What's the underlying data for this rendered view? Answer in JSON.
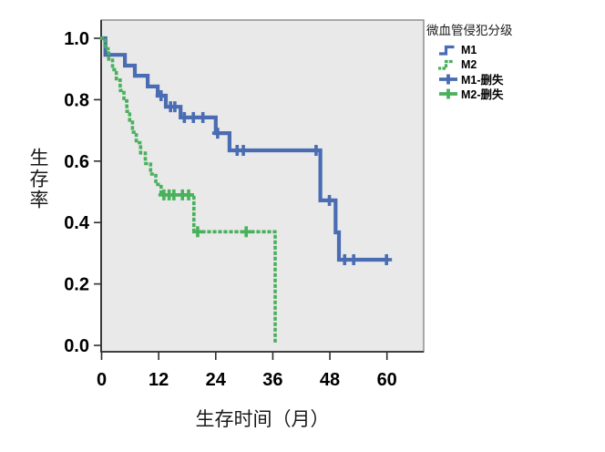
{
  "chart_data": {
    "type": "line",
    "subtype": "kaplan_meier_step",
    "title": "",
    "xlabel": "生存时间（月）",
    "ylabel": "生存率",
    "legend_title": "微血管侵犯分级",
    "legend_position": "right",
    "grid": false,
    "xlim": [
      0,
      67.7
    ],
    "ylim": [
      -0.02,
      1.06
    ],
    "xtick_values": [
      0,
      12,
      24,
      36,
      48,
      60
    ],
    "xtick_labels": [
      "0",
      "12",
      "24",
      "36",
      "48",
      "60"
    ],
    "ytick_values": [
      0.0,
      0.2,
      0.4,
      0.6,
      0.8,
      1.0
    ],
    "ytick_labels": [
      "0.0",
      "0.2",
      "0.4",
      "0.6",
      "0.8",
      "1.0"
    ],
    "colors": {
      "plot_bg": "#e9e9e9",
      "frame": "#8f8f8f",
      "axis": "#2e2e2e",
      "text": "#000000"
    },
    "series": [
      {
        "name": "M1",
        "color": "#4a6cb2",
        "line_style": "solid",
        "points": [
          [
            0,
            1.0
          ],
          [
            0.8,
            0.946
          ],
          [
            4.9,
            0.911
          ],
          [
            7.0,
            0.878
          ],
          [
            9.7,
            0.843
          ],
          [
            11.8,
            0.813
          ],
          [
            13.5,
            0.777
          ],
          [
            16.6,
            0.742
          ],
          [
            24.0,
            0.691
          ],
          [
            26.9,
            0.635
          ],
          [
            46.0,
            0.472
          ],
          [
            49.2,
            0.368
          ],
          [
            49.9,
            0.279
          ]
        ],
        "extend_to": 60.3,
        "censors": [
          [
            12.5,
            0.813
          ],
          [
            14.5,
            0.777
          ],
          [
            15.4,
            0.777
          ],
          [
            17.4,
            0.742
          ],
          [
            19.3,
            0.742
          ],
          [
            21.3,
            0.742
          ],
          [
            24.4,
            0.691
          ],
          [
            28.5,
            0.635
          ],
          [
            29.8,
            0.635
          ],
          [
            45.1,
            0.635
          ],
          [
            47.9,
            0.472
          ],
          [
            51.1,
            0.279
          ],
          [
            53.0,
            0.279
          ],
          [
            59.9,
            0.279
          ]
        ]
      },
      {
        "name": "M2",
        "color": "#49b15c",
        "line_style": "dotted",
        "points": [
          [
            0,
            1.0
          ],
          [
            0.7,
            0.966
          ],
          [
            1.5,
            0.932
          ],
          [
            2.3,
            0.898
          ],
          [
            3.1,
            0.864
          ],
          [
            3.9,
            0.83
          ],
          [
            4.7,
            0.796
          ],
          [
            5.3,
            0.762
          ],
          [
            5.9,
            0.728
          ],
          [
            6.5,
            0.694
          ],
          [
            7.3,
            0.66
          ],
          [
            8.2,
            0.626
          ],
          [
            9.2,
            0.592
          ],
          [
            10.3,
            0.558
          ],
          [
            11.4,
            0.524
          ],
          [
            12.5,
            0.49
          ],
          [
            19.4,
            0.37
          ],
          [
            36.5,
            0.0
          ]
        ],
        "extend_to": null,
        "censors": [
          [
            13.1,
            0.49
          ],
          [
            14.2,
            0.49
          ],
          [
            15.2,
            0.49
          ],
          [
            17.0,
            0.49
          ],
          [
            18.3,
            0.49
          ],
          [
            20.2,
            0.37
          ],
          [
            30.4,
            0.37
          ]
        ]
      }
    ],
    "legend_items": [
      {
        "label": "M1",
        "marker": "step-line",
        "series": 0
      },
      {
        "label": "M2",
        "marker": "step-line-dotted",
        "series": 1
      },
      {
        "label": "M1-删失",
        "marker": "plus",
        "series": 0
      },
      {
        "label": "M2-删失",
        "marker": "plus",
        "series": 1
      }
    ]
  }
}
